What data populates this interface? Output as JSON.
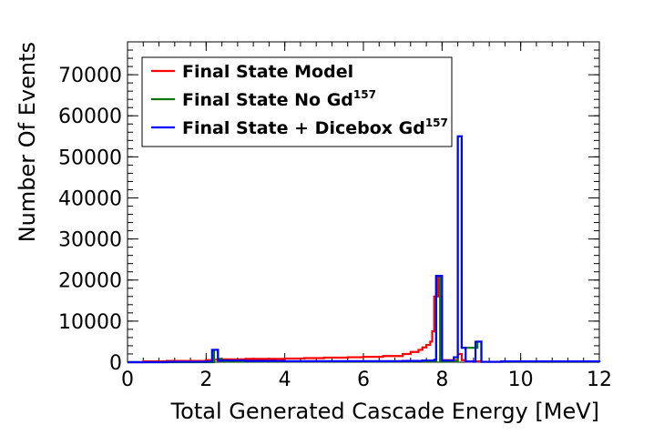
{
  "chart_data": {
    "type": "line",
    "xlabel": "Total Generated Cascade Energy [MeV]",
    "ylabel": "Number Of Events",
    "xlim": [
      0,
      12
    ],
    "ylim": [
      0,
      78000
    ],
    "x_ticks": [
      "0",
      "2",
      "4",
      "6",
      "8",
      "10",
      "12"
    ],
    "y_ticks": [
      "0",
      "10000",
      "20000",
      "30000",
      "40000",
      "50000",
      "60000",
      "70000"
    ],
    "grid": false,
    "legend_position": "top-left",
    "legend": [
      {
        "text": "Final State Model",
        "sup": "",
        "color": "#ff0000"
      },
      {
        "text": "Final State No Gd",
        "sup": "157",
        "color": "#007700"
      },
      {
        "text": "Final State + Dicebox Gd",
        "sup": "157",
        "color": "#0000ff"
      }
    ],
    "series": [
      {
        "name": "Final State Model",
        "color": "#ff0000",
        "x": [
          0,
          0.4,
          1.0,
          2.0,
          2.2,
          2.3,
          3.0,
          4.0,
          4.5,
          5.0,
          5.6,
          6.0,
          6.5,
          7.0,
          7.2,
          7.4,
          7.5,
          7.6,
          7.7,
          7.75,
          7.8,
          7.85,
          7.9,
          8.0,
          8.4,
          8.5,
          8.6,
          9.0,
          12.0
        ],
        "y": [
          0,
          200,
          300,
          500,
          600,
          700,
          800,
          900,
          1000,
          1100,
          1200,
          1300,
          1500,
          2000,
          2500,
          3000,
          3600,
          4200,
          5000,
          7500,
          16000,
          21000,
          16000,
          500,
          2000,
          500,
          200,
          100,
          0
        ]
      },
      {
        "name": "Final State No Gd157",
        "color": "#007700",
        "x": [
          0,
          2.2,
          2.3,
          2.4,
          7.85,
          7.95,
          8.4,
          8.5,
          8.9,
          9.0,
          12.0
        ],
        "y": [
          0,
          3000,
          800,
          200,
          21000,
          200,
          55000,
          3500,
          5000,
          100,
          0
        ]
      },
      {
        "name": "Final State + Dicebox Gd157",
        "color": "#0000ff",
        "x": [
          0,
          1.0,
          2.0,
          2.15,
          2.25,
          2.3,
          3.0,
          4.0,
          5.0,
          6.0,
          7.0,
          7.5,
          7.8,
          7.85,
          7.95,
          8.0,
          8.3,
          8.4,
          8.5,
          8.6,
          8.8,
          8.85,
          8.95,
          9.0,
          9.5,
          12.0
        ],
        "y": [
          0,
          100,
          150,
          3000,
          3000,
          400,
          300,
          250,
          250,
          250,
          300,
          400,
          600,
          21000,
          21000,
          400,
          1200,
          55000,
          3500,
          200,
          100,
          5000,
          5000,
          100,
          200,
          0
        ]
      }
    ]
  }
}
